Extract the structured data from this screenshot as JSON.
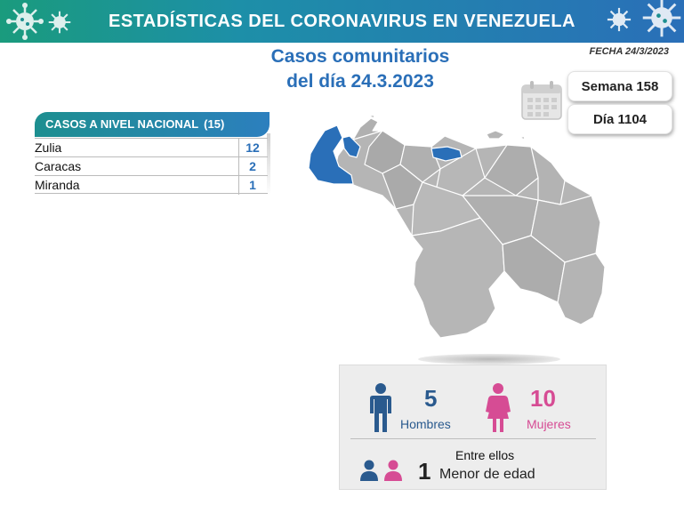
{
  "header": {
    "title": "ESTADÍSTICAS DEL CORONAVIRUS EN VENEZUELA"
  },
  "subtitle": {
    "line1": "Casos comunitarios",
    "line2": "del día 24.3.2023"
  },
  "fecha": "FECHA 24/3/2023",
  "semana": "Semana 158",
  "dia": "Día 1104",
  "casos": {
    "header_label": "CASOS A NIVEL NACIONAL",
    "total": "(15)",
    "rows": [
      {
        "name": "Zulia",
        "value": "12"
      },
      {
        "name": "Caracas",
        "value": "2"
      },
      {
        "name": "Miranda",
        "value": "1"
      }
    ]
  },
  "stats": {
    "hombres_count": "5",
    "hombres_label": "Hombres",
    "mujeres_count": "10",
    "mujeres_label": "Mujeres",
    "entre_label": "Entre ellos",
    "menor_count": "1",
    "menor_label": "Menor de edad"
  },
  "colors": {
    "brand_blue": "#2a6fb8",
    "brand_teal": "#1a9b7d",
    "male": "#2a5a8e",
    "female": "#d64c94",
    "map_gray": "#b5b5b5",
    "map_highlight": "#2a6fb8"
  },
  "icons": [
    "virus-icon",
    "calendar-icon",
    "man-icon",
    "woman-icon",
    "child-boy-icon",
    "child-girl-icon"
  ]
}
